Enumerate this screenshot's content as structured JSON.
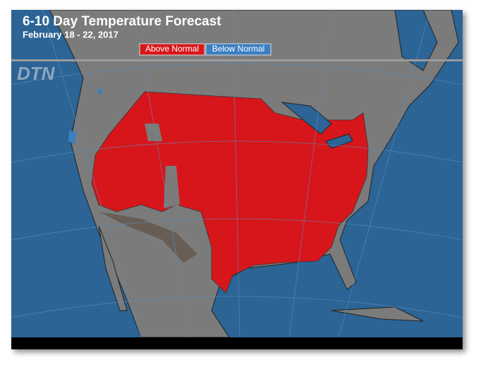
{
  "header": {
    "title": "6-10 Day Temperature Forecast",
    "subtitle": "February 18 - 22, 2017"
  },
  "legend": [
    {
      "label": "Above Normal",
      "color": "#d7161b"
    },
    {
      "label": "Below Normal",
      "color": "#3a7fc2"
    }
  ],
  "logo": "DTN"
}
